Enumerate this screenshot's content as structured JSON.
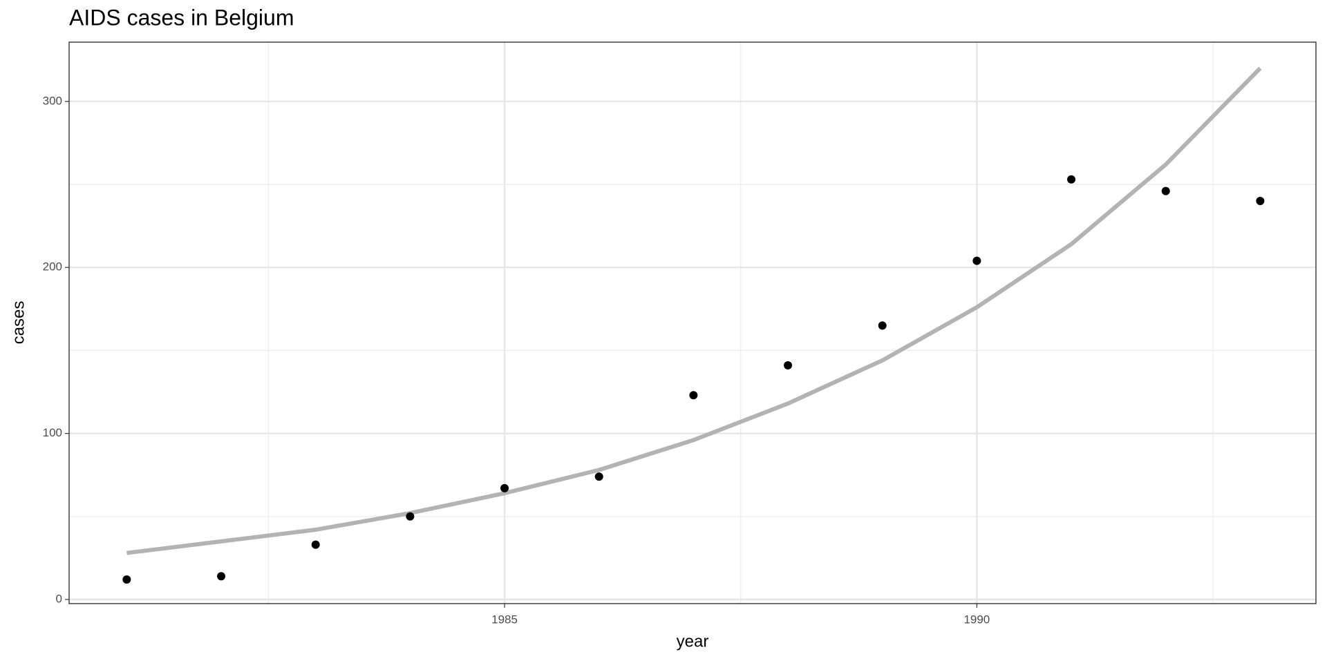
{
  "chart_data": {
    "type": "scatter",
    "title": "AIDS cases in Belgium",
    "xlabel": "year",
    "ylabel": "cases",
    "x": [
      1981,
      1982,
      1983,
      1984,
      1985,
      1986,
      1987,
      1988,
      1989,
      1990,
      1991,
      1992,
      1993
    ],
    "series": [
      {
        "type": "scatter",
        "color": "#000000",
        "values": [
          12,
          14,
          33,
          50,
          67,
          74,
          123,
          141,
          165,
          204,
          253,
          246,
          240
        ]
      },
      {
        "type": "line",
        "color": "#b3b3b3",
        "values": [
          28,
          35,
          42,
          52,
          64,
          78,
          96,
          118,
          144,
          176,
          214,
          262,
          320
        ]
      }
    ],
    "xlim": [
      1980.39,
      1993.59
    ],
    "xticks": [
      1985,
      1990
    ],
    "minor_xticks": [
      1982.5,
      1987.5,
      1992.5
    ],
    "ylim": [
      -2.5,
      335.7
    ],
    "yticks": [
      0,
      100,
      200,
      300
    ],
    "minor_yticks": [
      50,
      150,
      250
    ],
    "grid": true
  }
}
